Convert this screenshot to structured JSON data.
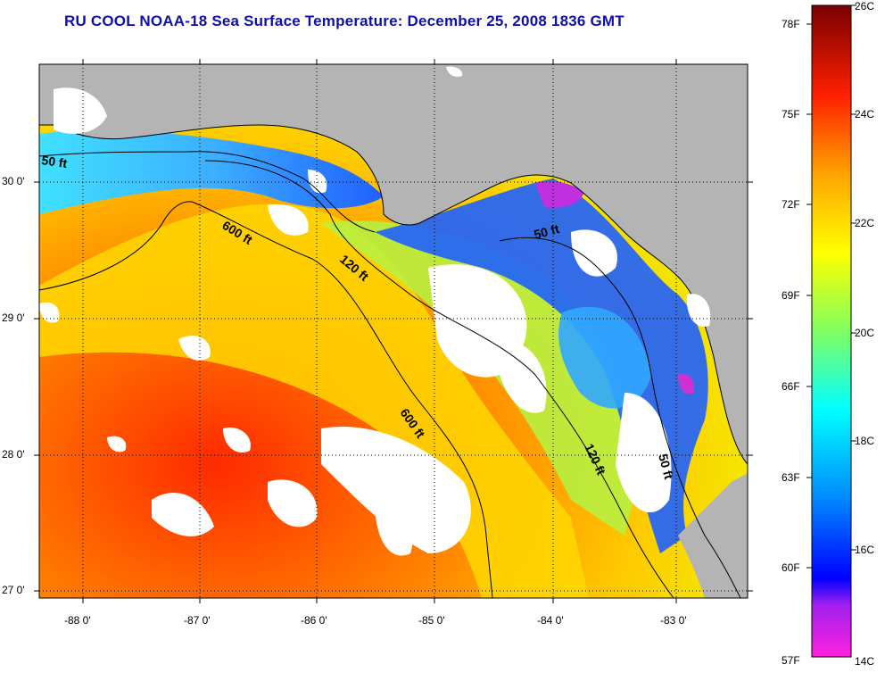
{
  "title": "RU COOL  NOAA-18  Sea Surface Temperature:  December 25, 2008 1836 GMT",
  "map": {
    "lon_labels": [
      "-88 0'",
      "-87 0'",
      "-86 0'",
      "-85 0'",
      "-84 0'",
      "-83 0'"
    ],
    "lat_labels": [
      "30 0'",
      "29 0'",
      "28 0'",
      "27 0'"
    ],
    "contour_labels": [
      "50 ft",
      "600 ft",
      "120 ft",
      "50 ft",
      "600 ft",
      "120 ft",
      "50 ft"
    ]
  },
  "colorbar": {
    "fahrenheit_labels": [
      "78F",
      "75F",
      "72F",
      "69F",
      "66F",
      "63F",
      "60F",
      "57F"
    ],
    "celsius_labels": [
      "26C",
      "24C",
      "22C",
      "20C",
      "18C",
      "16C",
      "14C"
    ],
    "colors": [
      "#ff33cc",
      "#8a2be2",
      "#0000ff",
      "#00a0ff",
      "#00ffff",
      "#7fff7f",
      "#ffff00",
      "#ffa500",
      "#ff0000",
      "#8b0000"
    ]
  },
  "legend_colors": {
    "land": "#b4b4b4",
    "cloud": "#ffffff",
    "coast": "#000000"
  }
}
